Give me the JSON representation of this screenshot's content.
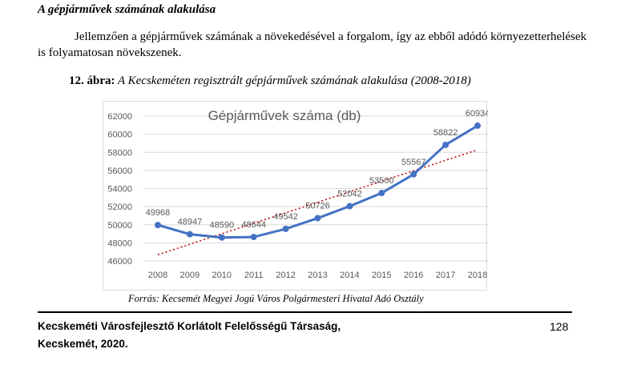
{
  "section_title": "A gépjárművek számának alakulása",
  "paragraph": "Jellemzően a gépjárművek számának a növekedésével a forgalom, így az ebből adódó környezetterhelések is folyamatosan növekszenek.",
  "figure": {
    "label": "12. ábra:",
    "caption": "A Kecskeméten regisztrált gépjárművek számának alakulása (2008-2018)",
    "source": "Forrás: Kecsemét Megyei Jogú Város Polgármesteri Hivatal Adó Osztály"
  },
  "chart_data": {
    "type": "line",
    "title": "Gépjárművek száma (db)",
    "x": [
      "2008",
      "2009",
      "2010",
      "2011",
      "2012",
      "2013",
      "2014",
      "2015",
      "2016",
      "2017",
      "2018"
    ],
    "series": [
      {
        "values": [
          49968,
          48947,
          48590,
          48644,
          49542,
          50726,
          52042,
          53500,
          55567,
          58822,
          60934
        ]
      }
    ],
    "data_labels": [
      "49968",
      "48947",
      "48590",
      "48644",
      "49542",
      "50726",
      "52042",
      "53500",
      "55567",
      "58822",
      "60934"
    ],
    "yticks": [
      "46000",
      "48000",
      "50000",
      "52000",
      "54000",
      "56000",
      "58000",
      "60000",
      "62000"
    ],
    "ylim": [
      46000,
      62000
    ],
    "trendline": "linear",
    "grid": "horizontal",
    "colors": {
      "line": "#4472c4",
      "trend": "#c00000",
      "grid": "#d9d9d9",
      "text": "#595959"
    }
  },
  "footer": {
    "line1": "Kecskeméti Városfejlesztő Korlátolt Felelősségű Társaság,",
    "line2": "Kecskemét, 2020.",
    "page_number": "128"
  }
}
